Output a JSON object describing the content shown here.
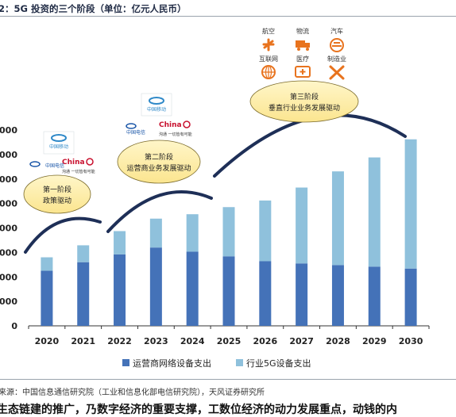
{
  "figure": {
    "title": "2：5G 投资的三个阶段（单位：亿元人民币）",
    "source": "来源：中国信息通信研究院（工业和信息化部电信研究院），天风证券研究所",
    "cut_text": "生态链建的推广，乃数字经济的重要支撑，工数位经济的动力发展重点，动钱的内"
  },
  "logos": {
    "mobile_cn": "中国移动",
    "mobile_en": "China Mobile",
    "telecom_cn": "中国电信",
    "unicom_en": "China",
    "unicom_cn": "沟通 一切皆有可能"
  },
  "phases": [
    {
      "stage": "第一阶段",
      "desc": "政策驱动"
    },
    {
      "stage": "第二阶段",
      "desc": "运营商业务发展驱动"
    },
    {
      "stage": "第三阶段",
      "desc": "垂直行业业务发展驱动"
    }
  ],
  "industries": [
    "航空",
    "物流",
    "汽车",
    "互联网",
    "医疗",
    "制造业"
  ],
  "chart_data": {
    "type": "bar",
    "stacked": true,
    "categories": [
      "2020",
      "2021",
      "2022",
      "2023",
      "2024",
      "2025",
      "2026",
      "2027",
      "2028",
      "2029",
      "2030"
    ],
    "series": [
      {
        "name": "运营商网络设备支出",
        "color": "#4472b8",
        "values": [
          2250,
          2600,
          2920,
          3200,
          3030,
          2840,
          2640,
          2550,
          2480,
          2420,
          2340
        ]
      },
      {
        "name": "行业5G设备支出",
        "color": "#8fc1dc",
        "values": [
          550,
          690,
          950,
          1180,
          1530,
          2010,
          2480,
          3100,
          3830,
          4460,
          5280
        ]
      }
    ],
    "ylim": [
      0,
      8000
    ],
    "yticks": [
      0,
      1000,
      2000,
      3000,
      4000,
      5000,
      6000,
      7000,
      8000
    ],
    "ytick_labels": [
      "0",
      "1000",
      "2000",
      "3000",
      "4000",
      "5000",
      "6000",
      "7000",
      "8000"
    ],
    "grid": false,
    "legend_position": "bottom"
  }
}
